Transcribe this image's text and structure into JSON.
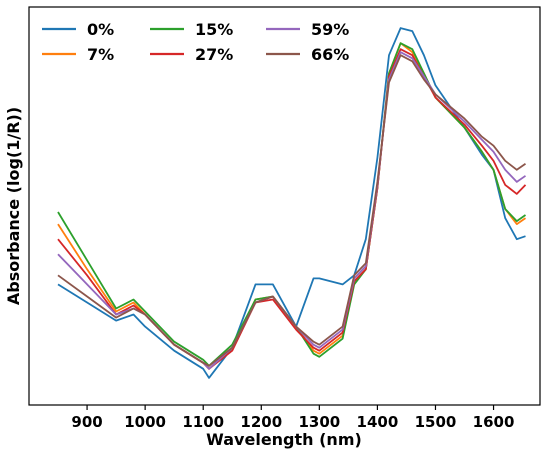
{
  "chart_data": {
    "type": "line",
    "xlabel": "Wavelength (nm)",
    "ylabel": "Absorbance (log(1/R))",
    "xlim": [
      800,
      1680
    ],
    "ylim": [
      -0.4,
      0.92
    ],
    "xticks": [
      900,
      1000,
      1100,
      1200,
      1300,
      1400,
      1500,
      1600
    ],
    "yticks_visible": false,
    "grid": false,
    "legend": {
      "location": "top-left",
      "columns": 3,
      "frame": false
    },
    "x": [
      850,
      900,
      950,
      980,
      1000,
      1050,
      1100,
      1110,
      1150,
      1190,
      1220,
      1260,
      1290,
      1300,
      1340,
      1360,
      1380,
      1400,
      1420,
      1440,
      1460,
      1480,
      1500,
      1550,
      1580,
      1600,
      1620,
      1640,
      1655
    ],
    "series": [
      {
        "name": "0%",
        "color": "#1f77b4",
        "values": [
          0.0,
          -0.06,
          -0.12,
          -0.1,
          -0.14,
          -0.22,
          -0.28,
          -0.31,
          -0.21,
          0.0,
          0.0,
          -0.14,
          0.02,
          0.02,
          0.0,
          0.03,
          0.15,
          0.42,
          0.76,
          0.85,
          0.84,
          0.76,
          0.66,
          0.52,
          0.43,
          0.38,
          0.22,
          0.15,
          0.16
        ]
      },
      {
        "name": "7%",
        "color": "#ff7f0e",
        "values": [
          0.2,
          0.05,
          -0.09,
          -0.06,
          -0.1,
          -0.2,
          -0.26,
          -0.28,
          -0.21,
          -0.05,
          -0.04,
          -0.14,
          -0.22,
          -0.23,
          -0.17,
          0.01,
          0.05,
          0.32,
          0.7,
          0.8,
          0.77,
          0.7,
          0.62,
          0.52,
          0.44,
          0.38,
          0.25,
          0.2,
          0.22
        ]
      },
      {
        "name": "15%",
        "color": "#2ca02c",
        "values": [
          0.24,
          0.08,
          -0.08,
          -0.05,
          -0.09,
          -0.19,
          -0.25,
          -0.27,
          -0.2,
          -0.05,
          -0.04,
          -0.14,
          -0.23,
          -0.24,
          -0.18,
          0.0,
          0.05,
          0.32,
          0.7,
          0.8,
          0.78,
          0.7,
          0.62,
          0.52,
          0.44,
          0.38,
          0.25,
          0.21,
          0.23
        ]
      },
      {
        "name": "27%",
        "color": "#d62728",
        "values": [
          0.15,
          0.03,
          -0.1,
          -0.07,
          -0.1,
          -0.2,
          -0.26,
          -0.28,
          -0.22,
          -0.06,
          -0.05,
          -0.15,
          -0.21,
          -0.22,
          -0.16,
          0.01,
          0.05,
          0.32,
          0.69,
          0.78,
          0.76,
          0.69,
          0.62,
          0.53,
          0.46,
          0.41,
          0.33,
          0.3,
          0.33
        ]
      },
      {
        "name": "59%",
        "color": "#9467bd",
        "values": [
          0.1,
          0.0,
          -0.1,
          -0.08,
          -0.1,
          -0.2,
          -0.26,
          -0.28,
          -0.21,
          -0.06,
          -0.04,
          -0.14,
          -0.2,
          -0.21,
          -0.15,
          0.02,
          0.06,
          0.33,
          0.68,
          0.77,
          0.75,
          0.69,
          0.63,
          0.54,
          0.48,
          0.44,
          0.38,
          0.34,
          0.36
        ]
      },
      {
        "name": "66%",
        "color": "#8c564b",
        "values": [
          0.03,
          -0.04,
          -0.11,
          -0.08,
          -0.1,
          -0.2,
          -0.26,
          -0.27,
          -0.21,
          -0.06,
          -0.04,
          -0.14,
          -0.19,
          -0.2,
          -0.14,
          0.03,
          0.07,
          0.34,
          0.67,
          0.76,
          0.74,
          0.68,
          0.63,
          0.55,
          0.49,
          0.46,
          0.41,
          0.38,
          0.4
        ]
      }
    ]
  }
}
